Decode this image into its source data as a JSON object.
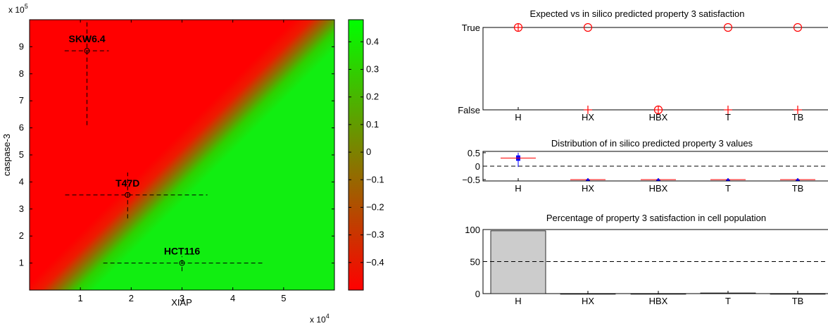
{
  "chart_data": [
    {
      "type": "heatmap",
      "xlabel": "XIAP",
      "ylabel": "caspase-3",
      "x_multiplier": "x 10",
      "x_exponent": "4",
      "y_multiplier": "x 10",
      "y_exponent": "5",
      "xlim": [
        0,
        60000
      ],
      "ylim": [
        0,
        1000000
      ],
      "xticks": [
        1,
        2,
        3,
        4,
        5
      ],
      "yticks": [
        1,
        2,
        3,
        4,
        5,
        6,
        7,
        8,
        9
      ],
      "colorbar": {
        "range": [
          -0.5,
          0.48
        ],
        "ticks": [
          0.4,
          0.3,
          0.2,
          0.1,
          0,
          -0.1,
          -0.2,
          -0.3,
          -0.4
        ],
        "tick_labels": [
          "0.4",
          "0.3",
          "0.2",
          "0.1",
          "0",
          "−0.1",
          "−0.2",
          "−0.3",
          "−0.4"
        ],
        "low_color": "#ff0000",
        "high_color": "#00ff00"
      },
      "cell_lines": [
        {
          "label": "SKW6.4",
          "x": 11300,
          "y": 885000,
          "x_range": [
            6900,
            15600
          ],
          "y_range": [
            610000,
            1000000
          ]
        },
        {
          "label": "T47D",
          "x": 19300,
          "y": 352000,
          "x_range": [
            7000,
            35000
          ],
          "y_range": [
            265000,
            435000
          ]
        },
        {
          "label": "HCT116",
          "x": 30000,
          "y": 100000,
          "x_range": [
            14500,
            45800
          ],
          "y_range": [
            70000,
            125000
          ]
        }
      ]
    },
    {
      "type": "scatter",
      "title": "Expected vs in silico predicted property 3 satisfaction",
      "categories": [
        "H",
        "HX",
        "HBX",
        "T",
        "TB"
      ],
      "yticks": [
        "True",
        "False"
      ],
      "expected": [
        1,
        1,
        0,
        1,
        1
      ],
      "predicted": [
        1,
        0,
        0,
        0,
        0
      ],
      "marker_color": "#ff0000"
    },
    {
      "type": "box",
      "title": "Distribution of in silico predicted property 3 values",
      "categories": [
        "H",
        "HX",
        "HBX",
        "T",
        "TB"
      ],
      "ylim": [
        -0.55,
        0.55
      ],
      "yticks": [
        0.5,
        0,
        -0.5
      ],
      "ytick_labels": [
        "0.5",
        "0",
        "−0.5"
      ],
      "reference_line": 0,
      "medians": [
        0.3,
        -0.5,
        -0.5,
        -0.5,
        -0.5
      ],
      "q1": [
        0.2,
        -0.5,
        -0.5,
        -0.5,
        -0.5
      ],
      "q3": [
        0.4,
        -0.5,
        -0.5,
        -0.5,
        -0.5
      ],
      "whisker_low": [
        -0.03,
        -0.5,
        -0.5,
        -0.5,
        -0.5
      ],
      "whisker_high": [
        0.5,
        -0.5,
        -0.5,
        -0.5,
        -0.5
      ],
      "median_color": "#ff0000",
      "box_color": "#0000ff"
    },
    {
      "type": "bar",
      "title": "Percentage of property 3 satisfaction in cell population",
      "categories": [
        "H",
        "HX",
        "HBX",
        "T",
        "TB"
      ],
      "values": [
        98,
        0,
        0,
        1,
        0
      ],
      "ylim": [
        0,
        100
      ],
      "yticks": [
        100,
        50,
        0
      ],
      "reference_line": 50,
      "bar_color": "#cccccc"
    }
  ]
}
